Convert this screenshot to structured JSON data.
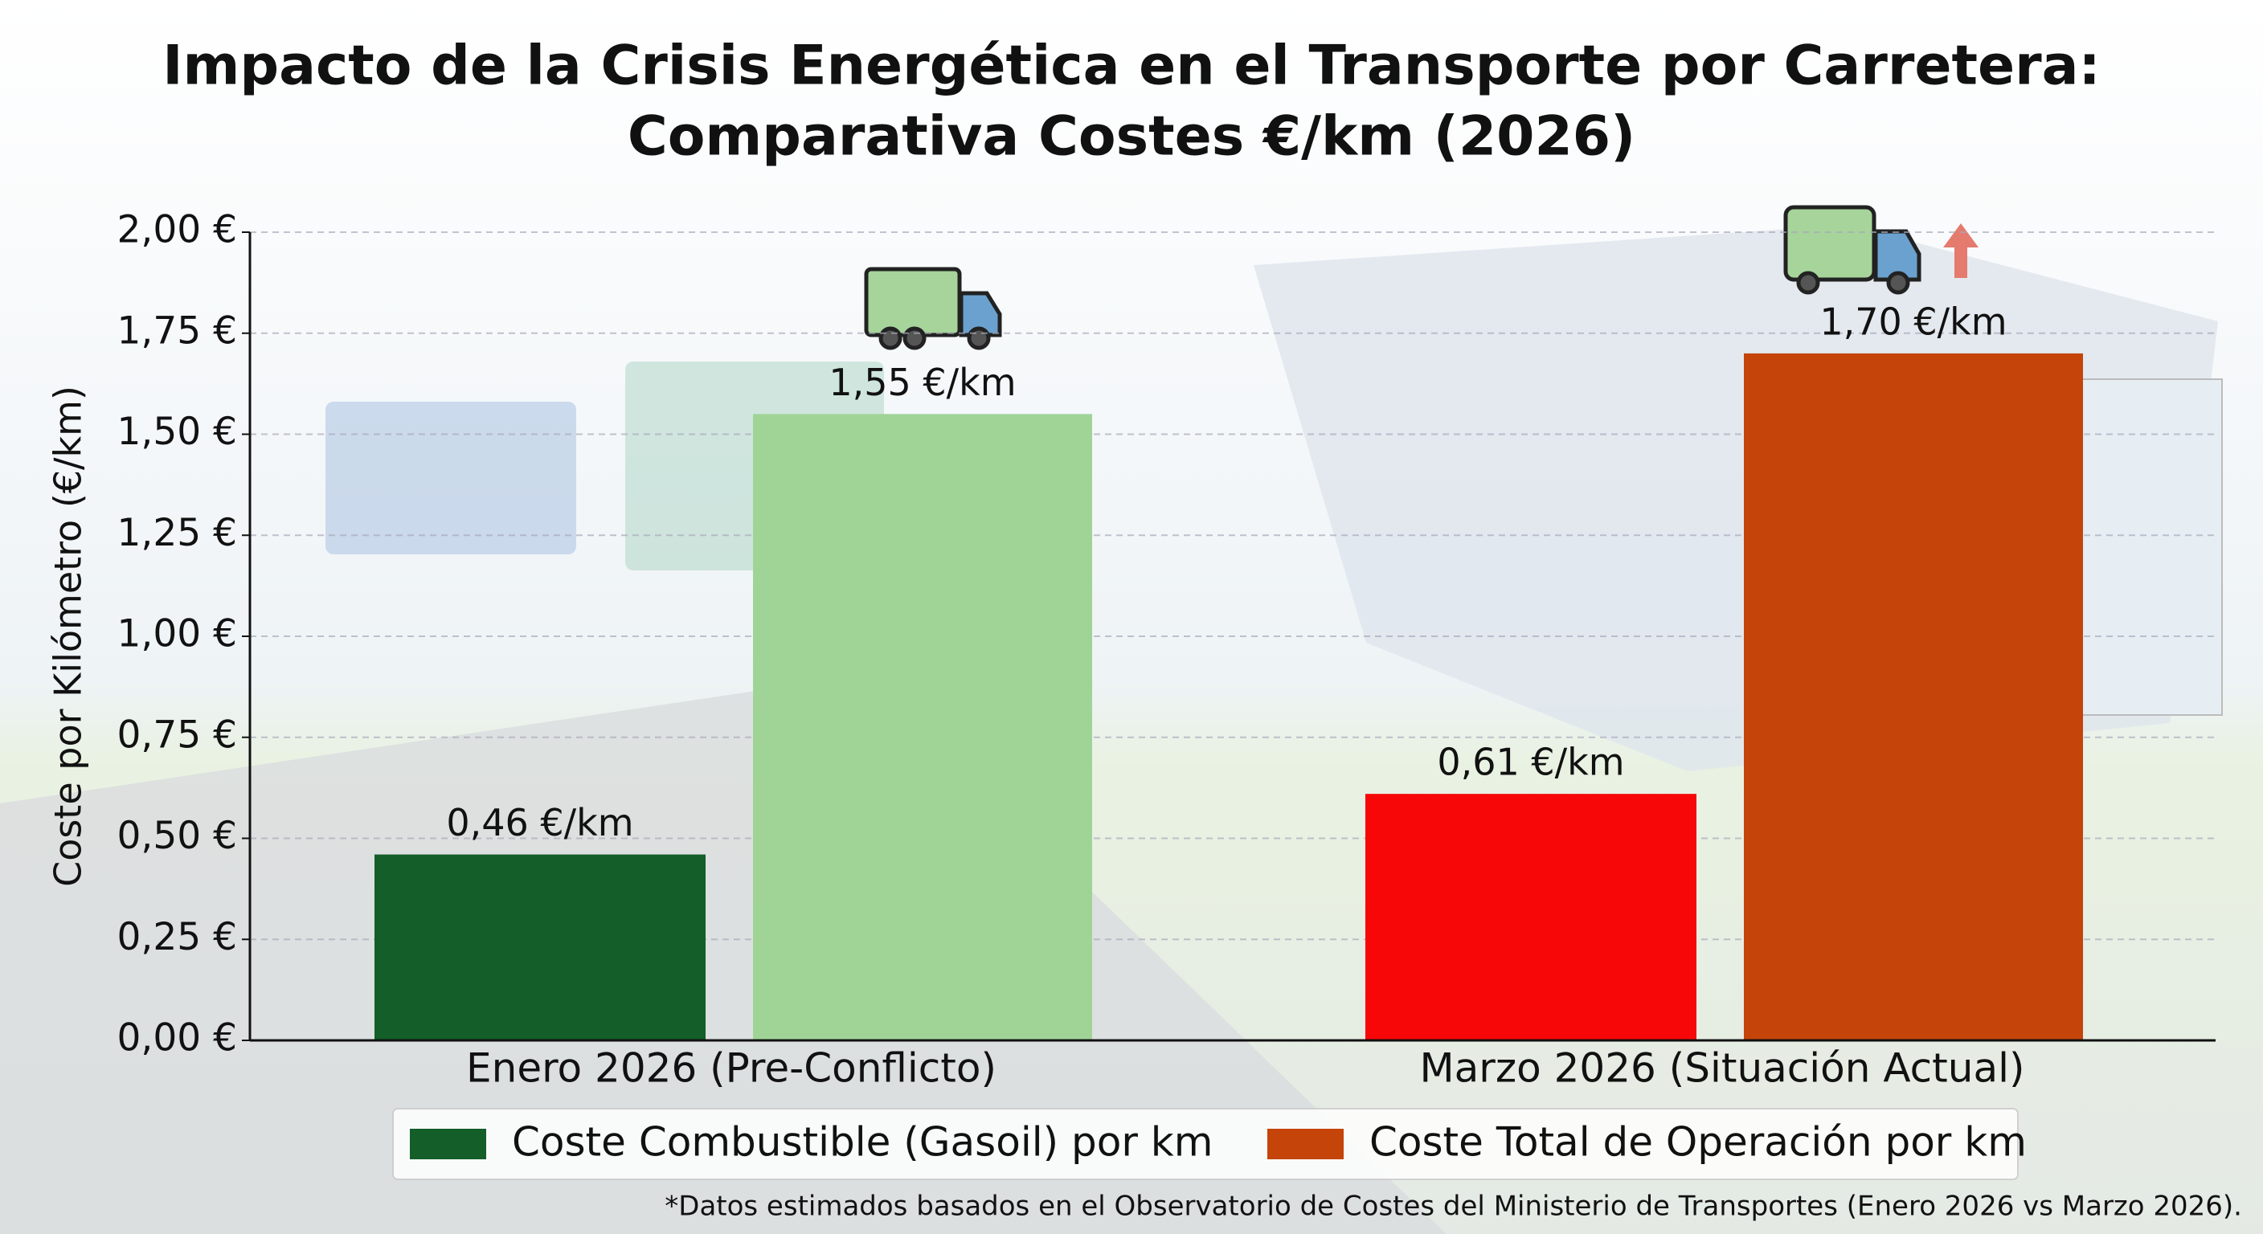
{
  "chart_data": {
    "type": "bar",
    "title": [
      "Impacto de la Crisis Energética en el Transporte por Carretera:",
      "Comparativa Costes €/km (2026)"
    ],
    "y_label": "Coste por Kilómetro (€/km)",
    "categories": [
      "Enero 2026 (Pre-Conflicto)",
      "Marzo 2026 (Situación Actual)"
    ],
    "series": [
      {
        "name": "Coste Combustible (Gasoil) por km",
        "color": "#135e29",
        "colors": [
          "#135e29",
          "#f70707"
        ],
        "values": [
          0.46,
          0.61
        ],
        "value_labels": [
          "0,46 €/km",
          "0,61 €/km"
        ]
      },
      {
        "name": "Coste Total de Operación por km",
        "color": "#c4440a",
        "colors": [
          "#a0d497",
          "#c4440a"
        ],
        "values": [
          1.55,
          1.7
        ],
        "value_labels": [
          "1,55 €/km",
          "1,70 €/km"
        ]
      }
    ],
    "ylim": [
      0,
      2
    ],
    "yticks": [
      {
        "value": 0,
        "label": "0,00 €"
      },
      {
        "value": 0.25,
        "label": "0,25 €"
      },
      {
        "value": 0.5,
        "label": "0,50 €"
      },
      {
        "value": 0.75,
        "label": "0,75 €"
      },
      {
        "value": 1,
        "label": "1,00 €"
      },
      {
        "value": 1.25,
        "label": "1,25 €"
      },
      {
        "value": 1.5,
        "label": "1,50 €"
      },
      {
        "value": 1.75,
        "label": "1,75 €"
      },
      {
        "value": 2,
        "label": "2,00 €"
      }
    ],
    "grid": true,
    "legend": "bottom",
    "footnote": "*Datos estimados basados en el Observatorio de Costes del Ministerio de Transportes (Enero 2026 vs Marzo 2026)."
  }
}
